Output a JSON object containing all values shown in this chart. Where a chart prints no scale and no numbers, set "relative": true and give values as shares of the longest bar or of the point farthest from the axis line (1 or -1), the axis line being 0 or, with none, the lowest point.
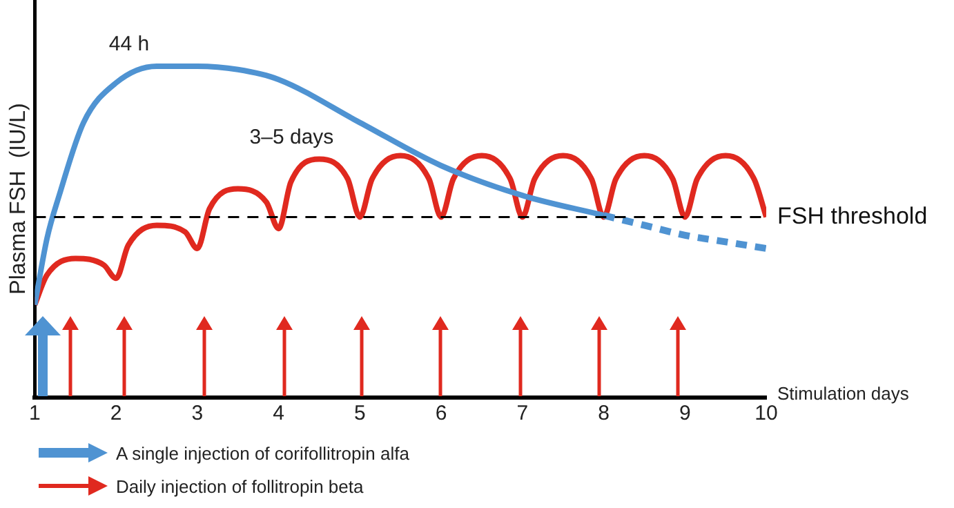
{
  "chart_data": {
    "type": "line",
    "relative": true,
    "ylabel": "Plasma FSH  (IU/L)",
    "xlabel": "Stimulation days",
    "xlim": [
      1,
      10
    ],
    "xticks": [
      1,
      2,
      3,
      4,
      5,
      6,
      7,
      8,
      9,
      10
    ],
    "legend": "bottom",
    "marker": "none",
    "grid": false,
    "series": [
      {
        "name": "A single injection of corifollitropin alfa",
        "color": "#4f93d2",
        "line_style": "solid",
        "x": [
          1,
          1.15,
          1.3,
          1.6,
          2,
          2.5,
          3,
          3.5,
          4,
          5,
          6,
          7,
          8
        ],
        "values": [
          0.28,
          0.48,
          0.61,
          0.83,
          0.95,
          1.0,
          1.0,
          0.99,
          0.96,
          0.83,
          0.7,
          0.61,
          0.55
        ]
      },
      {
        "color": "#4f93d2",
        "line_style": "dashed",
        "x": [
          8,
          8.5,
          9,
          9.5,
          10
        ],
        "values": [
          0.55,
          0.52,
          0.49,
          0.47,
          0.45
        ]
      },
      {
        "name": "Daily injection of follitropin beta",
        "color": "#e0291f",
        "line_style": "solid",
        "x": [
          1,
          1.15,
          1.5,
          1.85,
          2,
          2.15,
          2.5,
          2.85,
          3,
          3.15,
          3.5,
          3.85,
          4,
          4.15,
          4.5,
          4.85,
          5,
          5.15,
          5.5,
          5.85,
          6,
          6.15,
          6.5,
          6.85,
          7,
          7.15,
          7.5,
          7.85,
          8,
          8.15,
          8.5,
          8.85,
          9,
          9.15,
          9.5,
          9.85,
          10
        ],
        "values": [
          0.28,
          0.37,
          0.42,
          0.4,
          0.36,
          0.46,
          0.52,
          0.5,
          0.45,
          0.57,
          0.63,
          0.59,
          0.51,
          0.65,
          0.72,
          0.66,
          0.545,
          0.66,
          0.73,
          0.66,
          0.545,
          0.66,
          0.73,
          0.66,
          0.545,
          0.66,
          0.73,
          0.66,
          0.545,
          0.66,
          0.73,
          0.66,
          0.545,
          0.66,
          0.73,
          0.66,
          0.545
        ]
      }
    ],
    "ref_lines": [
      {
        "axis": "y",
        "value": 0.545,
        "label": "FSH threshold",
        "color": "#000000",
        "line_style": "dashed"
      }
    ],
    "annotations": [
      {
        "text": "44 h",
        "x": 2.5,
        "y": 1.0
      },
      {
        "text": "3–5 days",
        "x": 4.5,
        "y": 0.72
      }
    ]
  }
}
